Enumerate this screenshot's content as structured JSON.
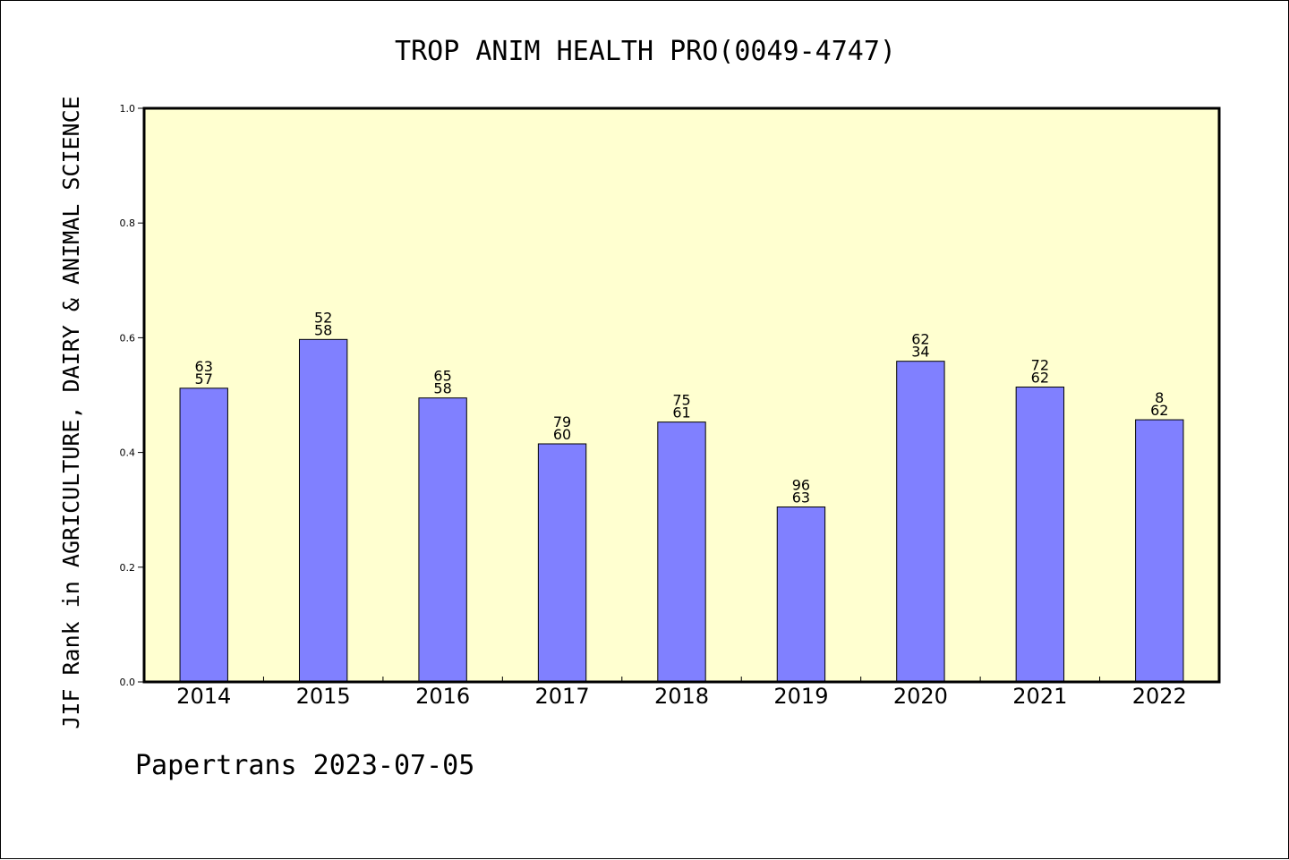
{
  "chart_data": {
    "type": "bar",
    "title": "TROP ANIM HEALTH PRO(0049-4747)",
    "ylabel": "JIF Rank in AGRICULTURE, DAIRY & ANIMAL SCIENCE",
    "xlabel": "",
    "footer": "Papertrans 2023-07-05",
    "ylim": [
      0,
      1.0
    ],
    "yticks": [
      0.0,
      0.2,
      0.4,
      0.6,
      0.8,
      1.0
    ],
    "ytick_labels": [
      "0.0",
      "0.2",
      "0.4",
      "0.6",
      "0.8",
      "1.0"
    ],
    "categories": [
      "2014",
      "2015",
      "2016",
      "2017",
      "2018",
      "2019",
      "2020",
      "2021",
      "2022"
    ],
    "values": [
      0.512,
      0.597,
      0.495,
      0.415,
      0.453,
      0.305,
      0.559,
      0.514,
      0.457
    ],
    "label_top": [
      "63",
      "52",
      "65",
      "79",
      "75",
      "96",
      "62",
      "72",
      "8"
    ],
    "label_bottom": [
      "57",
      "58",
      "58",
      "60",
      "61",
      "63",
      "34",
      "62",
      "62"
    ],
    "grid": false,
    "legend": "none",
    "colors": {
      "plot_background": "#ffffd0",
      "bar_fill": "#8080ff",
      "bar_stroke": "#000000",
      "axis": "#000000"
    }
  }
}
